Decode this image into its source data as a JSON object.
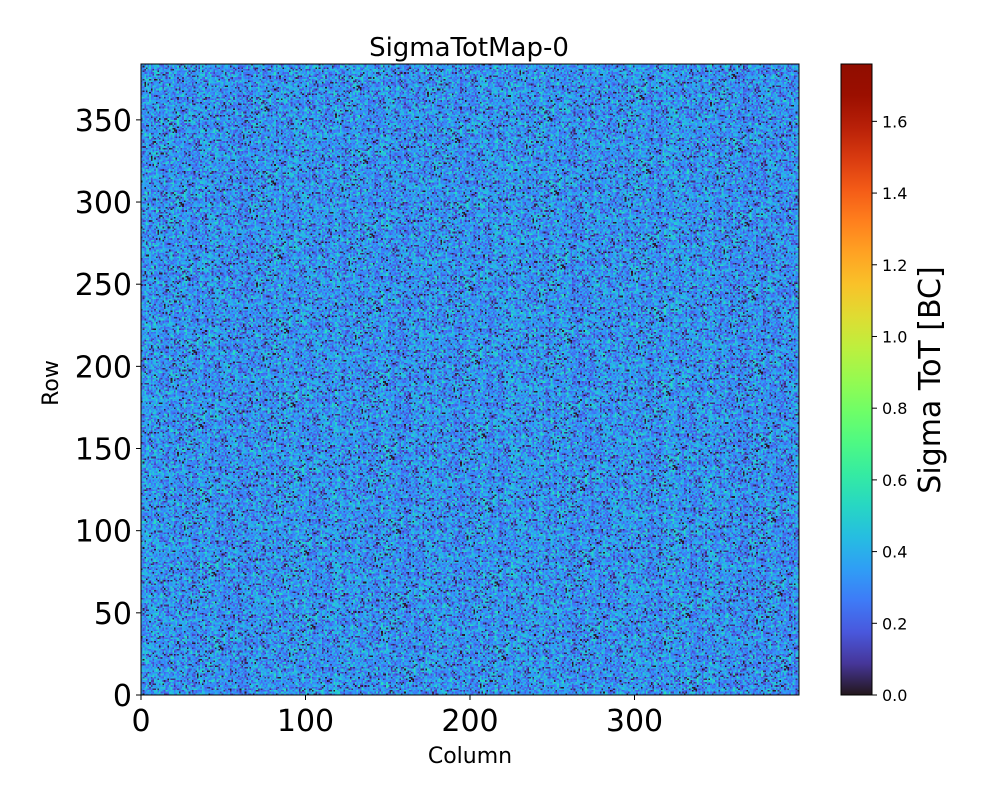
{
  "chart_data": {
    "type": "heatmap",
    "title": "SigmaTotMap-0",
    "xlabel": "Column",
    "ylabel": "Row",
    "x_range": [
      0,
      400
    ],
    "y_range": [
      0,
      384
    ],
    "x_ticks": [
      0,
      100,
      200,
      300
    ],
    "y_ticks": [
      0,
      50,
      100,
      150,
      200,
      250,
      300,
      350
    ],
    "colorbar": {
      "label": "Sigma ToT [BC]",
      "range": [
        0.0,
        1.76
      ],
      "ticks": [
        0.0,
        0.2,
        0.4,
        0.6,
        0.8,
        1.0,
        1.2,
        1.4,
        1.6
      ],
      "tick_labels": [
        "0.0",
        "0.2",
        "0.4",
        "0.6",
        "0.8",
        "1.0",
        "1.2",
        "1.4",
        "1.6"
      ],
      "colormap": "turbo"
    },
    "value_distribution": {
      "typical_min": 0.0,
      "typical_max": 0.55,
      "typical_center": 0.33
    },
    "grid": false,
    "legend": "none"
  }
}
